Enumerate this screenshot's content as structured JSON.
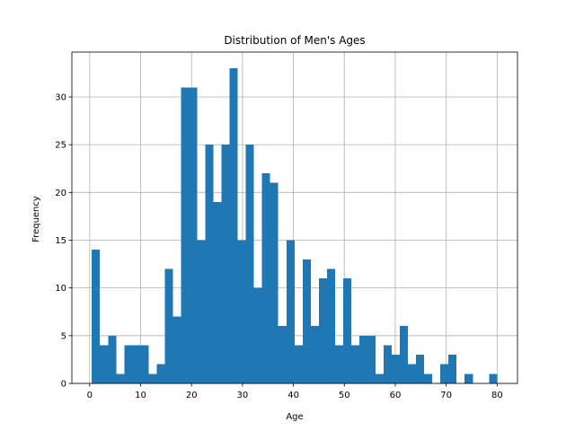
{
  "chart_data": {
    "type": "bar",
    "title": "Distribution of Men's Ages",
    "xlabel": "Age",
    "ylabel": "Frequency",
    "xlim": [
      -3.5,
      84
    ],
    "ylim": [
      0,
      34.7
    ],
    "xticks": [
      0,
      10,
      20,
      30,
      40,
      50,
      60,
      70,
      80
    ],
    "yticks": [
      0,
      5,
      10,
      15,
      20,
      25,
      30
    ],
    "grid": true,
    "bar_color": "#1f77b4",
    "bin_start": 0.42,
    "bin_width": 1.5916,
    "counts": [
      14,
      4,
      5,
      1,
      4,
      4,
      4,
      1,
      2,
      12,
      7,
      31,
      31,
      15,
      25,
      19,
      25,
      33,
      15,
      25,
      10,
      22,
      21,
      6,
      15,
      4,
      13,
      6,
      11,
      12,
      4,
      11,
      4,
      5,
      5,
      1,
      4,
      3,
      6,
      2,
      3,
      1,
      0,
      2,
      3,
      0,
      1,
      0,
      0,
      1
    ]
  }
}
